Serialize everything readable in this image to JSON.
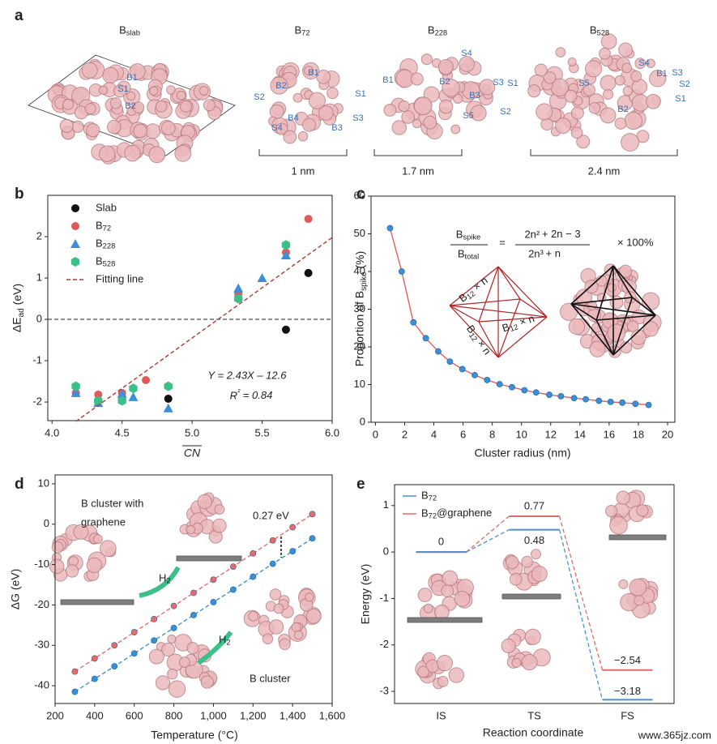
{
  "panel_a": {
    "panel": "a",
    "structures": [
      {
        "title": "Bslab",
        "sites": [
          "B1",
          "S1",
          "B2"
        ]
      },
      {
        "title": "B72",
        "sites": [
          "B1",
          "S1",
          "S2",
          "B2",
          "B3",
          "S3",
          "S4",
          "B4"
        ],
        "scale": "1 nm"
      },
      {
        "title": "B228",
        "sites": [
          "S4",
          "B1",
          "B2",
          "S3",
          "S1",
          "B3",
          "S5",
          "S2"
        ],
        "scale": "1.7 nm"
      },
      {
        "title": "B528",
        "sites": [
          "S4",
          "B1",
          "S3",
          "S2",
          "S5",
          "S1",
          "B2"
        ],
        "scale": "2.4 nm"
      }
    ]
  },
  "chart_data": [
    {
      "type": "scatter",
      "panel": "b",
      "xlabel": "CN",
      "ylabel": "ΔEad (eV)",
      "xlim": [
        3.97,
        6.0
      ],
      "ylim": [
        -2.45,
        3.0
      ],
      "xticks": [
        {
          "value": 4,
          "label": "4.0"
        },
        4.5,
        {
          "value": 5,
          "label": "5.0"
        },
        5.5,
        {
          "value": 6,
          "label": "6.0"
        }
      ],
      "yticks": [
        -2,
        -1,
        0,
        1,
        2
      ],
      "reference_line": 0,
      "legend": "upper left",
      "series": [
        {
          "name": "Slab",
          "color": "#111111",
          "marker": "circle",
          "x": [
            4.83,
            5.67,
            5.83
          ],
          "values": [
            -1.92,
            -0.25,
            1.12
          ]
        },
        {
          "name": "B72",
          "color": "#e05a5a",
          "marker": "circle",
          "x": [
            4.17,
            4.33,
            4.5,
            4.67,
            5.33,
            5.67,
            5.83
          ],
          "values": [
            -1.78,
            -1.82,
            -1.78,
            -1.47,
            0.62,
            1.62,
            2.43
          ]
        },
        {
          "name": "B228",
          "color": "#3a8fd8",
          "marker": "triangle",
          "x": [
            4.17,
            4.33,
            4.5,
            4.58,
            4.83,
            5.33,
            5.5,
            5.67
          ],
          "values": [
            -1.78,
            -2.02,
            -1.8,
            -1.88,
            -2.15,
            0.75,
            1.0,
            1.55
          ]
        },
        {
          "name": "B528",
          "color": "#3cc08a",
          "marker": "hexagon",
          "x": [
            4.17,
            4.33,
            4.5,
            4.58,
            4.83,
            5.33,
            5.67
          ],
          "values": [
            -1.62,
            -1.97,
            -1.97,
            -1.67,
            -1.62,
            0.5,
            1.8
          ]
        },
        {
          "name": "Fitting line",
          "color": "#b03a2e",
          "line_style": "dashed",
          "x": [
            4.17,
            6.0
          ],
          "values": [
            -2.47,
            1.98
          ]
        }
      ],
      "annotations": [
        "Y = 2.43X – 12.6",
        "R² = 0.84"
      ]
    },
    {
      "type": "line",
      "panel": "c",
      "xlabel": "Cluster radius (nm)",
      "ylabel": "Proportion of Bspike (%)",
      "xlim": [
        -0.3,
        20.5
      ],
      "ylim": [
        0,
        60
      ],
      "xticks": [
        0,
        2,
        4,
        6,
        8,
        10,
        12,
        14,
        16,
        18,
        20
      ],
      "yticks": [
        0,
        10,
        20,
        30,
        40,
        50,
        60
      ],
      "series": [
        {
          "color": "#3a8fd8",
          "line_color": "#e06060",
          "x": [
            1.0,
            1.8,
            2.6,
            3.45,
            4.3,
            5.1,
            5.95,
            6.8,
            7.65,
            8.5,
            9.35,
            10.2,
            11.0,
            11.9,
            12.7,
            13.6,
            14.4,
            15.3,
            16.1,
            16.9,
            17.8,
            18.7
          ],
          "values": [
            51.5,
            40,
            26.5,
            22.3,
            18.8,
            16.1,
            14.1,
            12.5,
            11.2,
            10.1,
            9.3,
            8.5,
            7.9,
            7.3,
            6.9,
            6.4,
            6.1,
            5.7,
            5.4,
            5.2,
            4.9,
            4.6
          ]
        }
      ],
      "annotations": [
        "Bspike",
        "Btotal",
        "=",
        "2n² + 2n − 3",
        "2n³ + n",
        "× 100%",
        "B12 × n",
        "B12 × n",
        "B12 × n"
      ]
    },
    {
      "type": "line",
      "panel": "d",
      "xlabel": "Temperature (°C)",
      "ylabel": "ΔG (eV)",
      "xlim": [
        200,
        1600
      ],
      "ylim": [
        -44.4,
        12.2
      ],
      "xticks": [
        200,
        400,
        600,
        800,
        {
          "value": 1000,
          "label": "1,000"
        },
        {
          "value": 1200,
          "label": "1,200"
        },
        {
          "value": 1400,
          "label": "1,400"
        },
        {
          "value": 1600,
          "label": "1,600"
        }
      ],
      "yticks": [
        -40,
        -30,
        -20,
        -10,
        0,
        10
      ],
      "series": [
        {
          "color": "#e86a6a",
          "line_style": "dashed",
          "x": [
            300,
            400,
            500,
            600,
            700,
            800,
            900,
            1000,
            1100,
            1200,
            1300,
            1400,
            1500
          ],
          "values": [
            -36.5,
            -33.25,
            -30,
            -26.75,
            -23.5,
            -20.25,
            -17,
            -13.75,
            -10.5,
            -7.25,
            -4,
            -0.75,
            2.5
          ]
        },
        {
          "color": "#3a8fd8",
          "line_style": "dashed",
          "x": [
            300,
            400,
            500,
            600,
            700,
            800,
            900,
            1000,
            1100,
            1200,
            1300,
            1400,
            1500
          ],
          "values": [
            -41.5,
            -38.3,
            -35.2,
            -32,
            -28.8,
            -25.7,
            -22.5,
            -19.3,
            -16.2,
            -13,
            -9.8,
            -6.7,
            -3.5
          ]
        }
      ],
      "annotations": [
        "B cluster with",
        "graphene",
        "0.27 eV",
        "H2",
        "H2",
        "B cluster"
      ]
    },
    {
      "type": "energy",
      "panel": "e",
      "xlabel": "Reaction coordinate",
      "ylabel": "Energy (eV)",
      "categories": [
        "IS",
        "TS",
        "FS"
      ],
      "ylim": [
        -3.26,
        1.45
      ],
      "yticks": [
        -3,
        -2,
        -1,
        0,
        1
      ],
      "legend": "upper left",
      "series": [
        {
          "name": "B72",
          "color": "#4a90d0",
          "values": [
            0,
            0.48,
            -3.18
          ],
          "value_labels": [
            "0",
            "0.48",
            "−3.18"
          ]
        },
        {
          "name": "B72@graphene",
          "color": "#e06a6a",
          "values": [
            0,
            0.77,
            -2.54
          ],
          "value_labels": [
            null,
            "0.77",
            "−2.54"
          ]
        }
      ]
    }
  ],
  "watermark": "www.365jz.com"
}
